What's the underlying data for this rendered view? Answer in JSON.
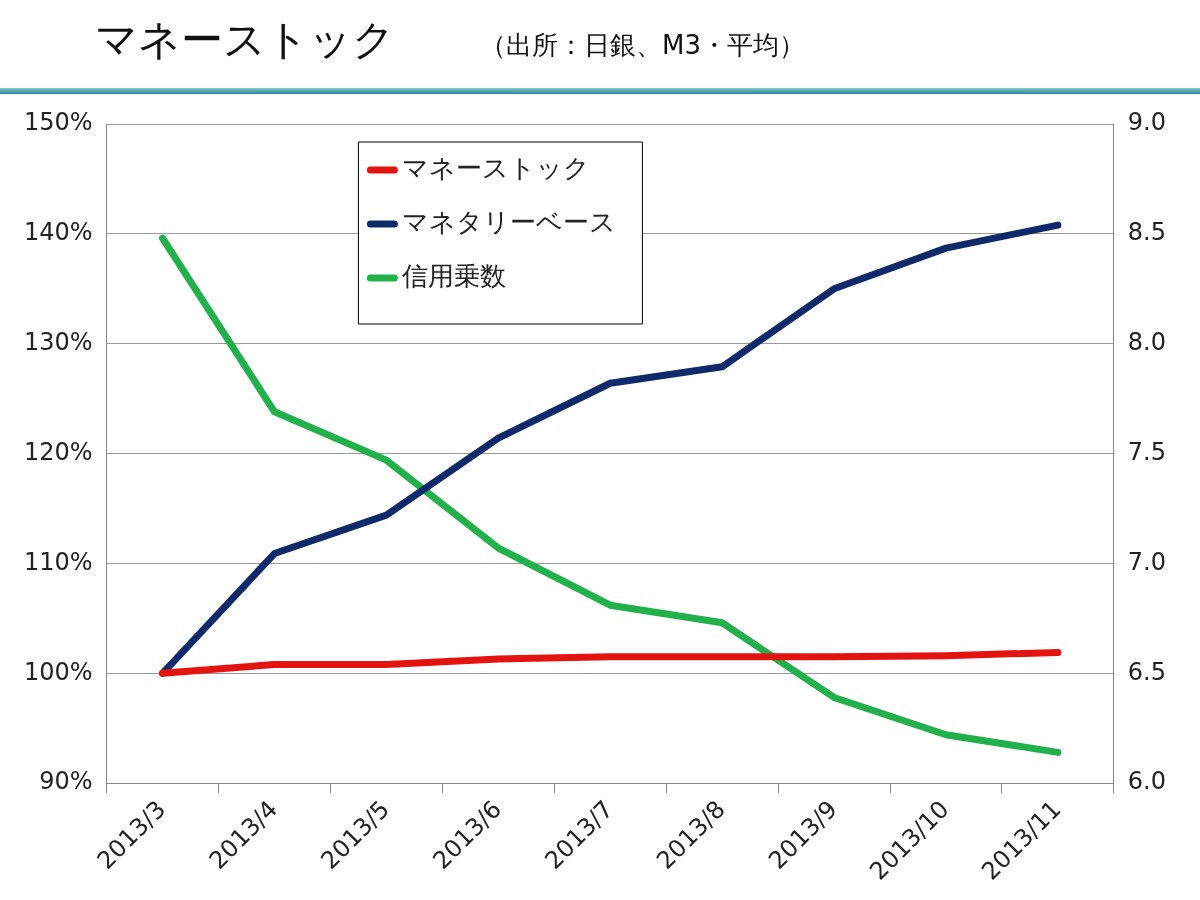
{
  "chart_data": {
    "type": "line",
    "title": "マネーストック",
    "subtitle": "（出所：日銀、M3・平均）",
    "categories": [
      "2013/3",
      "2013/4",
      "2013/5",
      "2013/6",
      "2013/7",
      "2013/8",
      "2013/9",
      "2013/10",
      "2013/11"
    ],
    "series": [
      {
        "name": "マネーストック",
        "color": "#e3140f",
        "values": [
          100,
          100.8,
          100.8,
          101.3,
          101.5,
          101.5,
          101.5,
          101.6,
          101.9
        ]
      },
      {
        "name": "マネタリーベース",
        "color": "#0e2a6b",
        "values": [
          100,
          110.9,
          114.4,
          121.4,
          126.4,
          127.9,
          135,
          138.7,
          140.8
        ]
      },
      {
        "name": "信用乗数",
        "color": "#22b04b",
        "axis": "y2",
        "values": [
          8.48,
          7.69,
          7.47,
          7.07,
          6.81,
          6.73,
          6.39,
          6.22,
          6.14
        ]
      }
    ],
    "ylim": [
      90,
      150
    ],
    "yticks": [
      {
        "value": 90,
        "label": "90%"
      },
      {
        "value": 100,
        "label": "100%"
      },
      {
        "value": 110,
        "label": "110%"
      },
      {
        "value": 120,
        "label": "120%"
      },
      {
        "value": 130,
        "label": "130%"
      },
      {
        "value": 140,
        "label": "140%"
      },
      {
        "value": 150,
        "label": "150%"
      }
    ],
    "y2lim": [
      6,
      9
    ],
    "y2ticks": [
      {
        "value": 6,
        "label": "6.0"
      },
      {
        "value": 6.5,
        "label": "6.5"
      },
      {
        "value": 7,
        "label": "7.0"
      },
      {
        "value": 7.5,
        "label": "7.5"
      },
      {
        "value": 8,
        "label": "8.0"
      },
      {
        "value": 8.5,
        "label": "8.5"
      },
      {
        "value": 9,
        "label": "9.0"
      }
    ],
    "grid": "y",
    "legend": "top",
    "marker": "none",
    "line_style": "solid"
  }
}
